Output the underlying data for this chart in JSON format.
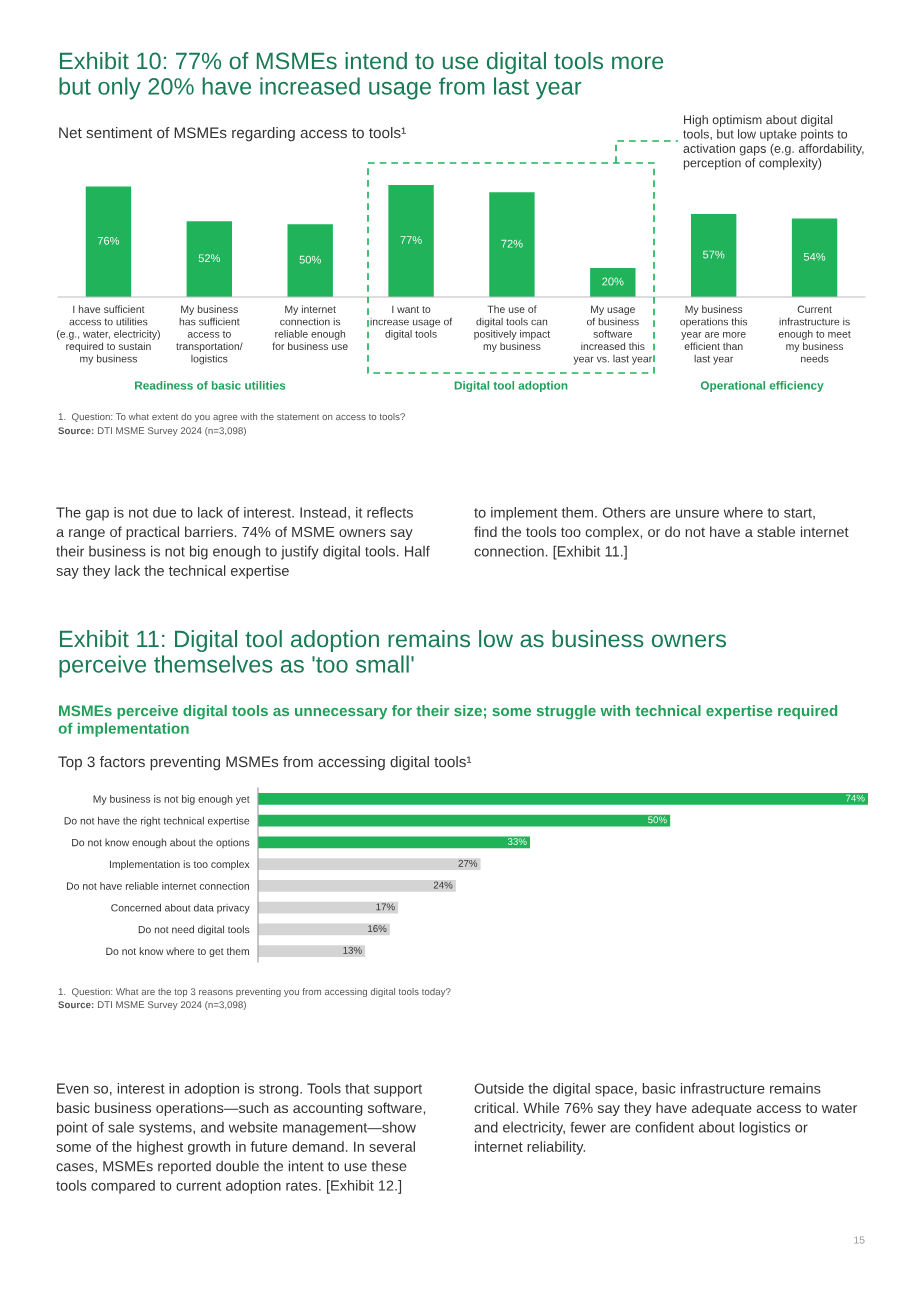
{
  "chart_data": [
    {
      "type": "bar",
      "title": "Exhibit 10: 77% of MSMEs intend to use digital tools more\nbut only 20% have increased usage from last year",
      "subtitle": "Net sentiment of MSMEs regarding access to tools¹",
      "categories": [
        "I have sufficient\naccess to utilities\n(e.g., water, electricity)\nrequired to sustain\nmy business",
        "My business\nhas sufficient\naccess to\ntransportation/\nlogistics",
        "My internet\nconnection is\nreliable enough\nfor business use",
        "I want to\nincrease usage of\ndigital tools",
        "The use of\ndigital tools can\npositively impact\nmy business",
        "My usage\nof business\nsoftware\nincreased this\nyear vs. last year",
        "My business\noperations this\nyear are more\nefficient than\nlast year",
        "Current\ninfrastructure is\nenough to meet\nmy business\nneeds"
      ],
      "values": [
        76,
        52,
        50,
        77,
        72,
        20,
        57,
        54
      ],
      "color": "#21b35a",
      "value_labels": [
        "76%",
        "52%",
        "50%",
        "77%",
        "72%",
        "20%",
        "57%",
        "54%"
      ],
      "legend": false,
      "grid": false,
      "annotations": [
        "High optimism about digital\ntools, but low uptake points to\nactivation gaps (e.g. affordability,\nperception of complexity)",
        "Readiness of basic utilities",
        "Digital tool adoption",
        "Operational efficiency",
        "1.  Question: To what extent do you agree with the statement on access to tools?",
        "Source: DTI MSME Survey 2024 (n=3,098)",
        "The gap is not due to lack of interest. Instead, it reflects\na range of practical barriers. 74% of MSME owners say\ntheir business is not big enough to justify digital tools. Half\nsay they lack the technical expertise",
        "to implement them. Others are unsure where to start,\nfind the tools too complex, or do not have a stable internet\nconnection. [Exhibit 11.]"
      ]
    },
    {
      "type": "bar",
      "orientation": "horizontal",
      "title": "Exhibit 11: Digital tool adoption remains low as business owners\nperceive themselves as 'too small'",
      "subtitle": "MSMEs perceive digital tools as unnecessary for their size; some struggle with technical expertise required\nof implementation",
      "categories": [
        "My business is not big enough yet",
        "Do not have the right technical expertise",
        "Do not know enough about the options",
        "Implementation is too complex",
        "Do not have reliable internet connection",
        "Concerned about data privacy",
        "Do not need digital tools",
        "Do not know where to get them"
      ],
      "values": [
        74,
        50,
        33,
        27,
        24,
        17,
        16,
        13
      ],
      "colors": [
        "#21b35a",
        "#21b35a",
        "#21b35a",
        "#d4d4d4",
        "#d4d4d4",
        "#d4d4d4",
        "#d4d4d4",
        "#d4d4d4"
      ],
      "value_labels": [
        "74%",
        "50%",
        "33%",
        "27%",
        "24%",
        "17%",
        "16%",
        "13%"
      ],
      "legend": false,
      "grid": false,
      "annotations": [
        "Top 3 factors preventing MSMEs from accessing digital tools¹",
        "1.  Question: What are the top 3 reasons preventing you from accessing digital tools today?",
        "Source: DTI MSME Survey 2024 (n=3,098)",
        "Even so, interest in adoption is strong. Tools that support\nbasic business operations—such as accounting software,\npoint of sale systems, and website management—show\nsome of the highest growth in future demand. In several\ncases, MSMEs reported double the intent to use these\ntools compared to current adoption rates. [Exhibit 12.]",
        "Outside the digital space, basic infrastructure remains\ncritical. While 76% say they have adequate access to water\nand electricity, fewer are confident about logistics or\ninternet reliability.",
        "15"
      ]
    }
  ]
}
